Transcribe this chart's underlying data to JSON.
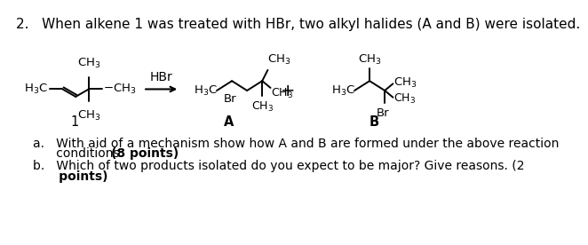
{
  "bg": "#ffffff",
  "title": "2.   When alkene 1 was treated with HBr, two alkyl halides (A and B) were isolated.",
  "title_fs": 11,
  "chem_fs": 9.5,
  "sub_fs": 7.5,
  "q_fs": 10
}
